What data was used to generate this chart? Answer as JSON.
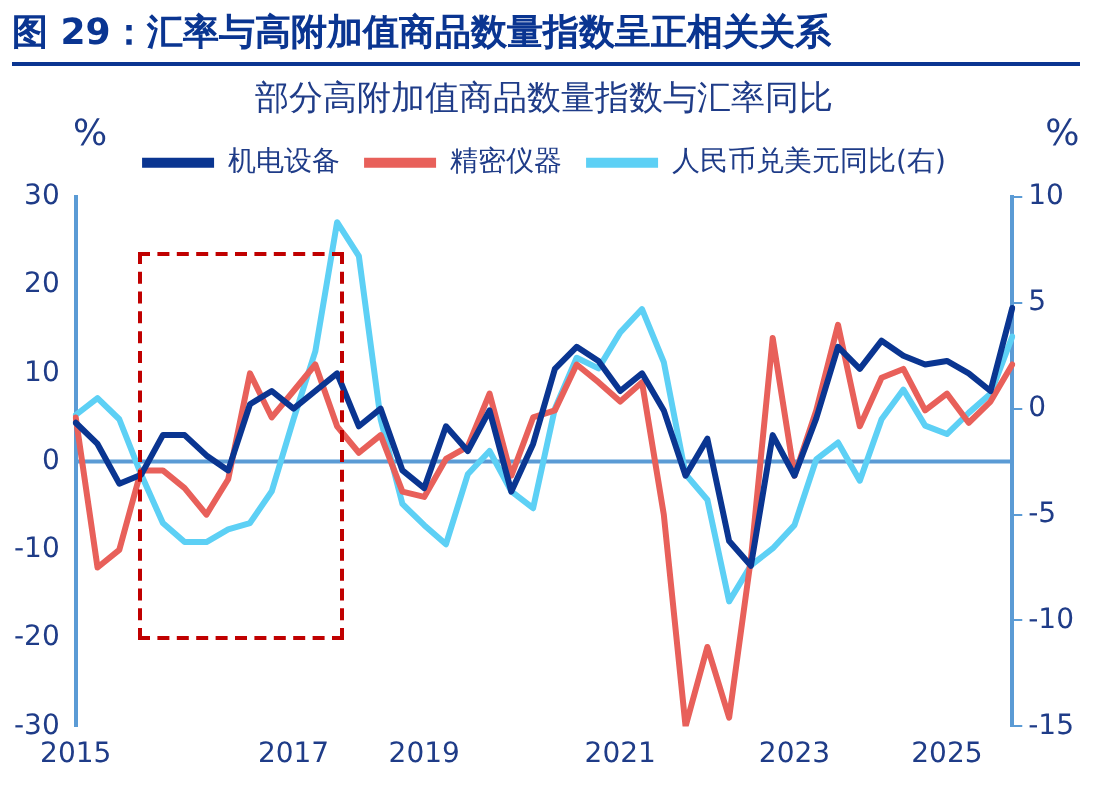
{
  "chart_data": {
    "type": "line",
    "title": "图 29：汇率与高附加值商品数量指数呈正相关关系",
    "subtitle": "部分高附加值商品数量指数与汇率同比",
    "ylabel": "%",
    "y2label": "%",
    "categories": [
      "2015",
      null,
      null,
      null,
      null,
      null,
      null,
      null,
      null,
      null,
      "2017",
      null,
      null,
      null,
      null,
      null,
      "2019",
      null,
      null,
      null,
      null,
      null,
      null,
      null,
      null,
      "2021",
      null,
      null,
      null,
      null,
      null,
      null,
      null,
      "2023",
      null,
      null,
      null,
      null,
      null,
      null,
      "2025",
      null,
      null,
      null
    ],
    "series": [
      {
        "name": "机电设备",
        "color": "#0a3591",
        "values": [
          4.4,
          2,
          -2.5,
          -1.5,
          3,
          3,
          0.7,
          -1,
          6.5,
          8,
          6,
          8,
          10,
          4,
          6,
          -1,
          -3,
          4,
          1.2,
          5.8,
          -3.4,
          2,
          10.5,
          13,
          11.4,
          8,
          10,
          5.8,
          -1.6,
          2.6,
          -9,
          -11.8,
          3,
          -1.6,
          4.9,
          13,
          10.5,
          13.7,
          12,
          11,
          11.4,
          10,
          8,
          17.4
        ]
      },
      {
        "name": "精密仪器",
        "color": "#e8605a",
        "values": [
          5,
          -12,
          -10,
          -1,
          -1,
          -3,
          -6,
          -2,
          10,
          5,
          8,
          11,
          4,
          1,
          3,
          -3.4,
          -4,
          0.3,
          1.7,
          7.7,
          -1.6,
          5,
          5.8,
          11,
          9,
          6.8,
          9,
          -6,
          -30,
          -21,
          -29,
          -11,
          14,
          -1.6,
          5.8,
          15.5,
          4,
          9.5,
          10.5,
          5.8,
          7.7,
          4.4,
          6.8,
          11
        ]
      },
      {
        "name": "人民币兑美元同比(右)",
        "color": "#5dd0f5",
        "axis": "y2",
        "values": [
          -0.3,
          0.5,
          -0.5,
          -3.1,
          -5.4,
          -6.3,
          -6.3,
          -5.7,
          -5.4,
          -3.9,
          -0.5,
          2.7,
          8.8,
          7.2,
          -0.5,
          -4.5,
          -5.5,
          -6.4,
          -3.1,
          -2,
          -3.9,
          -4.7,
          0,
          2.4,
          1.9,
          3.6,
          4.7,
          2.2,
          -3.1,
          -4.3,
          -9.1,
          -7.4,
          -6.6,
          -5.5,
          -2.4,
          -1.6,
          -3.4,
          -0.5,
          0.9,
          -0.8,
          -1.2,
          -0.2,
          0.7,
          3.4
        ]
      }
    ],
    "ylim": [
      -30,
      30
    ],
    "yticks": [
      -30,
      -20,
      -10,
      0,
      10,
      20,
      30
    ],
    "y2lim": [
      -15,
      10
    ],
    "y2ticks": [
      -15,
      -10,
      -5,
      0,
      5,
      10
    ],
    "ref_lines": [
      {
        "axis": "y",
        "value": 0,
        "color": "#5b9bd5"
      }
    ],
    "grid": false,
    "legend": "top",
    "marker": "none",
    "line_style": "solid"
  }
}
